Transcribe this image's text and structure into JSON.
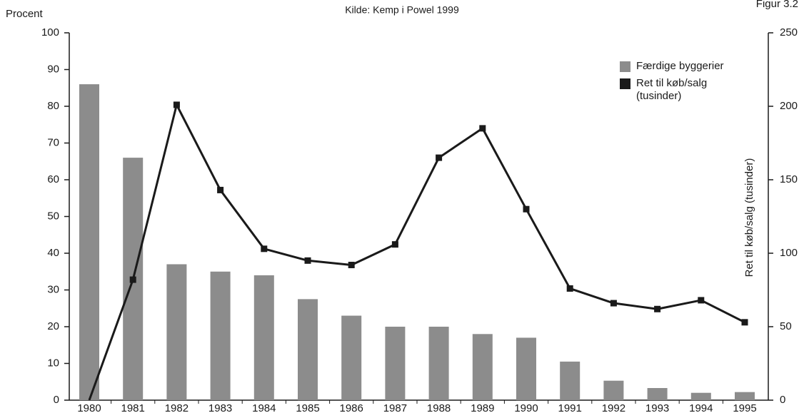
{
  "chart_data": {
    "type": "bar+line",
    "subtitle": "Kilde: Kemp i Powel 1999",
    "figure_label": "Figur 3.2",
    "ylabel": "Procent",
    "y2label": "Ret til køb/salg (tusinder)",
    "categories": [
      "1980",
      "1981",
      "1982",
      "1983",
      "1984",
      "1985",
      "1986",
      "1987",
      "1988",
      "1989",
      "1990",
      "1991",
      "1992",
      "1993",
      "1994",
      "1995"
    ],
    "series": [
      {
        "name": "Færdige byggerier",
        "type": "bar",
        "color": "#8c8c8c",
        "axis": "y",
        "values": [
          86,
          66,
          37,
          35,
          34,
          27.5,
          23,
          20,
          20,
          18,
          17,
          10.5,
          5.3,
          3.3,
          2,
          2.2
        ]
      },
      {
        "name": "Ret til køb/salg (tusinder)",
        "type": "line",
        "color": "#1a1a1a",
        "axis": "y2",
        "values": [
          0,
          82,
          201,
          143,
          103,
          95,
          92,
          106,
          165,
          185,
          130,
          76,
          66,
          62,
          68,
          53
        ]
      }
    ],
    "ylim": [
      0,
      100
    ],
    "yticks": [
      0,
      10,
      20,
      30,
      40,
      50,
      60,
      70,
      80,
      90,
      100
    ],
    "y2lim": [
      0,
      250
    ],
    "y2ticks": [
      0,
      50,
      100,
      150,
      200,
      250
    ],
    "grid": false,
    "legend": "upper right"
  }
}
